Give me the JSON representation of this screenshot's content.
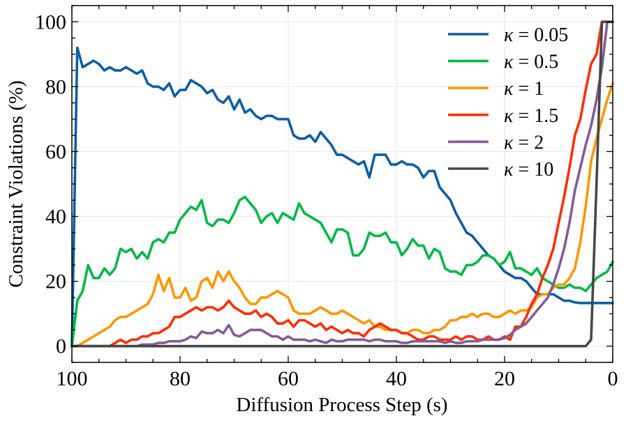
{
  "chart_data": {
    "type": "line",
    "title": "",
    "xlabel": "Diffusion Process Step (s)",
    "ylabel": "Constraint Violations (%)",
    "xlim": [
      100,
      0
    ],
    "ylim": [
      -5,
      105
    ],
    "x_reversed": true,
    "grid": true,
    "legend_position": "top-right",
    "x_ticks": [
      100,
      80,
      60,
      40,
      20,
      0
    ],
    "y_ticks": [
      0,
      20,
      40,
      60,
      80,
      100
    ],
    "x_tick_labels": [
      "100",
      "80",
      "60",
      "40",
      "20",
      "0"
    ],
    "y_tick_labels": [
      "0",
      "20",
      "40",
      "60",
      "80",
      "100"
    ],
    "series": [
      {
        "name": "κ = 0.05",
        "name_symbol": "κ",
        "name_rest": " = 0.05",
        "color": "#0C5DA5",
        "x": [
          100,
          99,
          98,
          97,
          96,
          95,
          94,
          93,
          92,
          91,
          90,
          89,
          88,
          87,
          86,
          85,
          84,
          83,
          82,
          81,
          80,
          79,
          78,
          77,
          76,
          75,
          74,
          73,
          72,
          71,
          70,
          69,
          68,
          67,
          66,
          65,
          64,
          63,
          62,
          61,
          60,
          59,
          58,
          57,
          56,
          55,
          54,
          53,
          52,
          51,
          50,
          49,
          48,
          47,
          46,
          45,
          44,
          43,
          42,
          41,
          40,
          39,
          38,
          37,
          36,
          35,
          34,
          33,
          32,
          31,
          30,
          29,
          28,
          27,
          26,
          25,
          24,
          23,
          22,
          21,
          20,
          19,
          18,
          17,
          16,
          15,
          14,
          13,
          12,
          11,
          10,
          9,
          8,
          7,
          6,
          5,
          4,
          3,
          2,
          1,
          0
        ],
        "y": [
          0,
          92,
          86,
          87,
          88,
          87,
          85,
          86,
          85,
          85,
          86,
          85,
          84,
          85,
          81,
          80,
          80,
          79,
          81,
          77,
          79,
          79,
          82,
          81,
          80,
          78,
          79,
          76,
          75,
          77,
          73,
          76,
          72,
          73,
          71,
          70,
          71,
          71,
          70,
          70,
          70,
          65,
          64,
          64,
          65,
          63,
          66,
          64,
          62,
          59,
          59,
          58,
          57,
          56,
          57,
          52,
          59,
          59,
          59,
          56,
          56,
          57,
          56,
          56,
          55,
          52,
          54,
          54,
          49,
          47,
          45,
          41,
          38,
          35,
          34,
          32,
          30,
          28,
          27,
          25,
          23,
          22,
          21,
          21,
          20,
          18,
          16,
          16,
          16,
          16,
          15,
          14,
          14,
          13.5,
          13.3,
          13.3,
          13.3,
          13.3,
          13.3,
          13.3,
          13.3
        ]
      },
      {
        "name": "κ = 0.5",
        "name_symbol": "κ",
        "name_rest": " = 0.5",
        "color": "#00B945",
        "x": [
          100,
          99,
          98,
          97,
          96,
          95,
          94,
          93,
          92,
          91,
          90,
          89,
          88,
          87,
          86,
          85,
          84,
          83,
          82,
          81,
          80,
          79,
          78,
          77,
          76,
          75,
          74,
          73,
          72,
          71,
          70,
          69,
          68,
          67,
          66,
          65,
          64,
          63,
          62,
          61,
          60,
          59,
          58,
          57,
          56,
          55,
          54,
          53,
          52,
          51,
          50,
          49,
          48,
          47,
          46,
          45,
          44,
          43,
          42,
          41,
          40,
          39,
          38,
          37,
          36,
          35,
          34,
          33,
          32,
          31,
          30,
          29,
          28,
          27,
          26,
          25,
          24,
          23,
          22,
          21,
          20,
          19,
          18,
          17,
          16,
          15,
          14,
          13,
          12,
          11,
          10,
          9,
          8,
          7,
          6,
          5,
          4,
          3,
          2,
          1,
          0
        ],
        "y": [
          0,
          14,
          17,
          25,
          21,
          21,
          24,
          22,
          24,
          30,
          29,
          30,
          27,
          29,
          27,
          32,
          33,
          32,
          35,
          35,
          39,
          41,
          43,
          42,
          45,
          38,
          37,
          39,
          39,
          38,
          41,
          45,
          46,
          44,
          42,
          38,
          40,
          41,
          38,
          41,
          40,
          39,
          44,
          41,
          40,
          39,
          38,
          35,
          32,
          36,
          36,
          35,
          28,
          28,
          30,
          35,
          34,
          34,
          35,
          32,
          32,
          28,
          30,
          33,
          31,
          31,
          27,
          30,
          29,
          24,
          23,
          23,
          22,
          25,
          25,
          26,
          28,
          28,
          27,
          25,
          26,
          29,
          24,
          24,
          23,
          22,
          24,
          21,
          20,
          19,
          18,
          18,
          19,
          18,
          18,
          17,
          19,
          21,
          22,
          23,
          26
        ]
      },
      {
        "name": "κ = 1",
        "name_symbol": "κ",
        "name_rest": " = 1",
        "color": "#FF9500",
        "x": [
          100,
          99,
          98,
          97,
          96,
          95,
          94,
          93,
          92,
          91,
          90,
          89,
          88,
          87,
          86,
          85,
          84,
          83,
          82,
          81,
          80,
          79,
          78,
          77,
          76,
          75,
          74,
          73,
          72,
          71,
          70,
          69,
          68,
          67,
          66,
          65,
          64,
          63,
          62,
          61,
          60,
          59,
          58,
          57,
          56,
          55,
          54,
          53,
          52,
          51,
          50,
          49,
          48,
          47,
          46,
          45,
          44,
          43,
          42,
          41,
          40,
          39,
          38,
          37,
          36,
          35,
          34,
          33,
          32,
          31,
          30,
          29,
          28,
          27,
          26,
          25,
          24,
          23,
          22,
          21,
          20,
          19,
          18,
          17,
          16,
          15,
          14,
          13,
          12,
          11,
          10,
          9,
          8,
          7,
          6,
          5,
          4,
          3,
          2,
          1,
          0
        ],
        "y": [
          0,
          0,
          1,
          2,
          3,
          4,
          5,
          6,
          8,
          9,
          9,
          10,
          11,
          12,
          13,
          16,
          22,
          17,
          21,
          15,
          15,
          18,
          14,
          15,
          20,
          21,
          18,
          23,
          20,
          23,
          20,
          18,
          15,
          13,
          13,
          15,
          15,
          16,
          17,
          16,
          15,
          11,
          10,
          10,
          10,
          11,
          12,
          11,
          10,
          10,
          11,
          10,
          9,
          8,
          7,
          8,
          6,
          6,
          5,
          5,
          5,
          4,
          4,
          5,
          5,
          4,
          4,
          5,
          5,
          6,
          8,
          8,
          9,
          9,
          10,
          9,
          10,
          10,
          9,
          9,
          10,
          11,
          10,
          11,
          11,
          12,
          15,
          16,
          16,
          18,
          19,
          19,
          21,
          24,
          32,
          43,
          57,
          64,
          70,
          76,
          81
        ]
      },
      {
        "name": "κ = 1.5",
        "name_symbol": "κ",
        "name_rest": " = 1.5",
        "color": "#FF2C00",
        "x": [
          100,
          99,
          98,
          97,
          96,
          95,
          94,
          93,
          92,
          91,
          90,
          89,
          88,
          87,
          86,
          85,
          84,
          83,
          82,
          81,
          80,
          79,
          78,
          77,
          76,
          75,
          74,
          73,
          72,
          71,
          70,
          69,
          68,
          67,
          66,
          65,
          64,
          63,
          62,
          61,
          60,
          59,
          58,
          57,
          56,
          55,
          54,
          53,
          52,
          51,
          50,
          49,
          48,
          47,
          46,
          45,
          44,
          43,
          42,
          41,
          40,
          39,
          38,
          37,
          36,
          35,
          34,
          33,
          32,
          31,
          30,
          29,
          28,
          27,
          26,
          25,
          24,
          23,
          22,
          21,
          20,
          19,
          18,
          17,
          16,
          15,
          14,
          13,
          12,
          11,
          10,
          9,
          8,
          7,
          6,
          5,
          4,
          3,
          2,
          1,
          0
        ],
        "y": [
          0,
          0,
          0,
          0,
          0,
          0,
          0,
          0,
          1,
          2,
          1,
          2,
          2,
          3,
          3,
          4,
          4,
          5,
          6,
          9,
          9,
          10,
          11,
          12,
          11,
          12,
          12,
          11,
          12,
          14,
          12,
          11,
          10,
          10,
          11,
          9,
          10,
          9,
          7,
          7,
          8,
          6,
          8,
          8,
          7,
          6,
          7,
          5,
          6,
          5,
          4,
          5,
          4,
          4,
          3,
          5,
          6,
          7,
          6,
          5,
          5,
          4,
          4,
          3,
          2,
          2,
          3,
          3,
          2,
          2,
          2,
          3,
          2,
          3,
          3,
          2,
          2,
          3,
          2,
          2,
          3,
          2,
          6,
          6,
          9,
          13,
          16,
          21,
          25,
          30,
          38,
          46,
          55,
          65,
          70,
          79,
          87,
          90,
          100,
          100,
          100
        ]
      },
      {
        "name": "κ = 2",
        "name_symbol": "κ",
        "name_rest": " = 2",
        "color": "#845B97",
        "x": [
          100,
          99,
          98,
          97,
          96,
          95,
          94,
          93,
          92,
          91,
          90,
          89,
          88,
          87,
          86,
          85,
          84,
          83,
          82,
          81,
          80,
          79,
          78,
          77,
          76,
          75,
          74,
          73,
          72,
          71,
          70,
          69,
          68,
          67,
          66,
          65,
          64,
          63,
          62,
          61,
          60,
          59,
          58,
          57,
          56,
          55,
          54,
          53,
          52,
          51,
          50,
          49,
          48,
          47,
          46,
          45,
          44,
          43,
          42,
          41,
          40,
          39,
          38,
          37,
          36,
          35,
          34,
          33,
          32,
          31,
          30,
          29,
          28,
          27,
          26,
          25,
          24,
          23,
          22,
          21,
          20,
          19,
          18,
          17,
          16,
          15,
          14,
          13,
          12,
          11,
          10,
          9,
          8,
          7,
          6,
          5,
          4,
          3,
          2,
          1,
          0
        ],
        "y": [
          0,
          0,
          0,
          0,
          0,
          0,
          0,
          0,
          0,
          0,
          0,
          0,
          0,
          0.5,
          0.5,
          0.5,
          1,
          1,
          1.5,
          1.5,
          1.5,
          2,
          3,
          2.5,
          4.5,
          4,
          4,
          5,
          4,
          6.5,
          3.5,
          3,
          4,
          5,
          5,
          5,
          4,
          3,
          3,
          2,
          3,
          2,
          2,
          2,
          1.5,
          2,
          1.5,
          1,
          2,
          1.5,
          1.5,
          2,
          2,
          2,
          2,
          1.5,
          2,
          2,
          1.5,
          1.5,
          1.5,
          1,
          1,
          1.5,
          1.5,
          1.5,
          1.5,
          1.5,
          1.5,
          1,
          1.5,
          1,
          1,
          1.5,
          1.5,
          1.5,
          2,
          2,
          2,
          2,
          2.5,
          3.5,
          5,
          6,
          7,
          9,
          11,
          13,
          15,
          19,
          24,
          30,
          38,
          48,
          55,
          62,
          68,
          76,
          86,
          100,
          100
        ]
      },
      {
        "name": "κ = 10",
        "name_symbol": "κ",
        "name_rest": " = 10",
        "color": "#474747",
        "x": [
          100,
          99,
          98,
          97,
          96,
          95,
          94,
          93,
          92,
          91,
          90,
          89,
          88,
          87,
          86,
          85,
          84,
          83,
          82,
          81,
          80,
          79,
          78,
          77,
          76,
          75,
          74,
          73,
          72,
          71,
          70,
          69,
          68,
          67,
          66,
          65,
          64,
          63,
          62,
          61,
          60,
          59,
          58,
          57,
          56,
          55,
          54,
          53,
          52,
          51,
          50,
          49,
          48,
          47,
          46,
          45,
          44,
          43,
          42,
          41,
          40,
          39,
          38,
          37,
          36,
          35,
          34,
          33,
          32,
          31,
          30,
          29,
          28,
          27,
          26,
          25,
          24,
          23,
          22,
          21,
          20,
          19,
          18,
          17,
          16,
          15,
          14,
          13,
          12,
          11,
          10,
          9,
          8,
          7,
          6,
          5,
          4,
          3,
          2,
          1,
          0
        ],
        "y": [
          0,
          0,
          0,
          0,
          0,
          0,
          0,
          0,
          0,
          0,
          0,
          0,
          0,
          0,
          0,
          0,
          0,
          0,
          0,
          0,
          0,
          0,
          0,
          0,
          0,
          0,
          0,
          0,
          0,
          0,
          0,
          0,
          0,
          0,
          0,
          0,
          0,
          0,
          0,
          0,
          0,
          0,
          0,
          0,
          0,
          0,
          0,
          0,
          0,
          0,
          0,
          0,
          0,
          0,
          0,
          0,
          0,
          0,
          0,
          0,
          0,
          0,
          0,
          0,
          0,
          0,
          0,
          0,
          0,
          0,
          0,
          0,
          0,
          0,
          0,
          0,
          0,
          0,
          0,
          0,
          0,
          0,
          0,
          0,
          0,
          0,
          0,
          0,
          0,
          0,
          0,
          0,
          0,
          0,
          0,
          0,
          2,
          50,
          100,
          100,
          100
        ]
      }
    ]
  }
}
